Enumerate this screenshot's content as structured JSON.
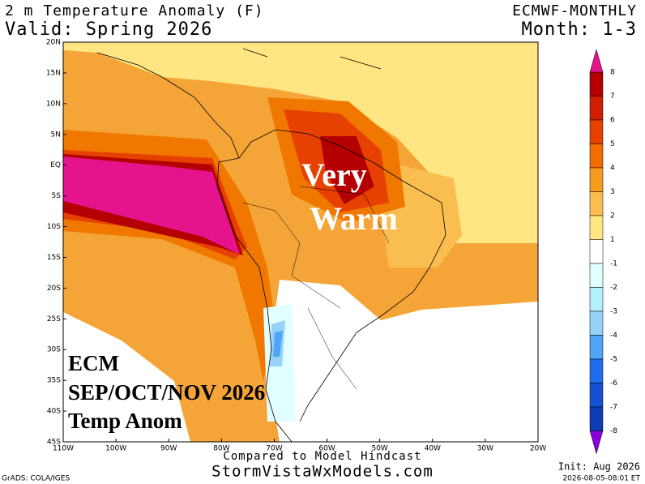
{
  "header": {
    "title": "2 m Temperature Anomaly (F)",
    "valid": "Valid: Spring 2026",
    "model": "ECMWF-MONTHLY",
    "month": "Month: 1-3"
  },
  "map": {
    "lat_labels": [
      "20N",
      "15N",
      "10N",
      "5N",
      "EQ",
      "5S",
      "10S",
      "15S",
      "20S",
      "25S",
      "30S",
      "35S",
      "40S",
      "45S"
    ],
    "lon_labels": [
      "110W",
      "100W",
      "90W",
      "80W",
      "70W",
      "60W",
      "50W",
      "40W",
      "30W",
      "20W"
    ]
  },
  "colorbar": {
    "labels": [
      8,
      7,
      6,
      5,
      4,
      3,
      2,
      1,
      -1,
      -2,
      -3,
      -4,
      -5,
      -6,
      -7,
      -8
    ]
  },
  "annotations": {
    "center": [
      "Very",
      "Warm"
    ],
    "bottom_left": [
      "ECM",
      "SEP/OCT/NOV 2026",
      "Temp Anom"
    ]
  },
  "footer": {
    "compared": "Compared to Model Hindcast",
    "site": "StormVistaWxModels.com",
    "grads": "GrADS: COLA/IGES",
    "init": "Init: Aug 2026",
    "timestamp": "2026-08-05-08:01 ET"
  }
}
